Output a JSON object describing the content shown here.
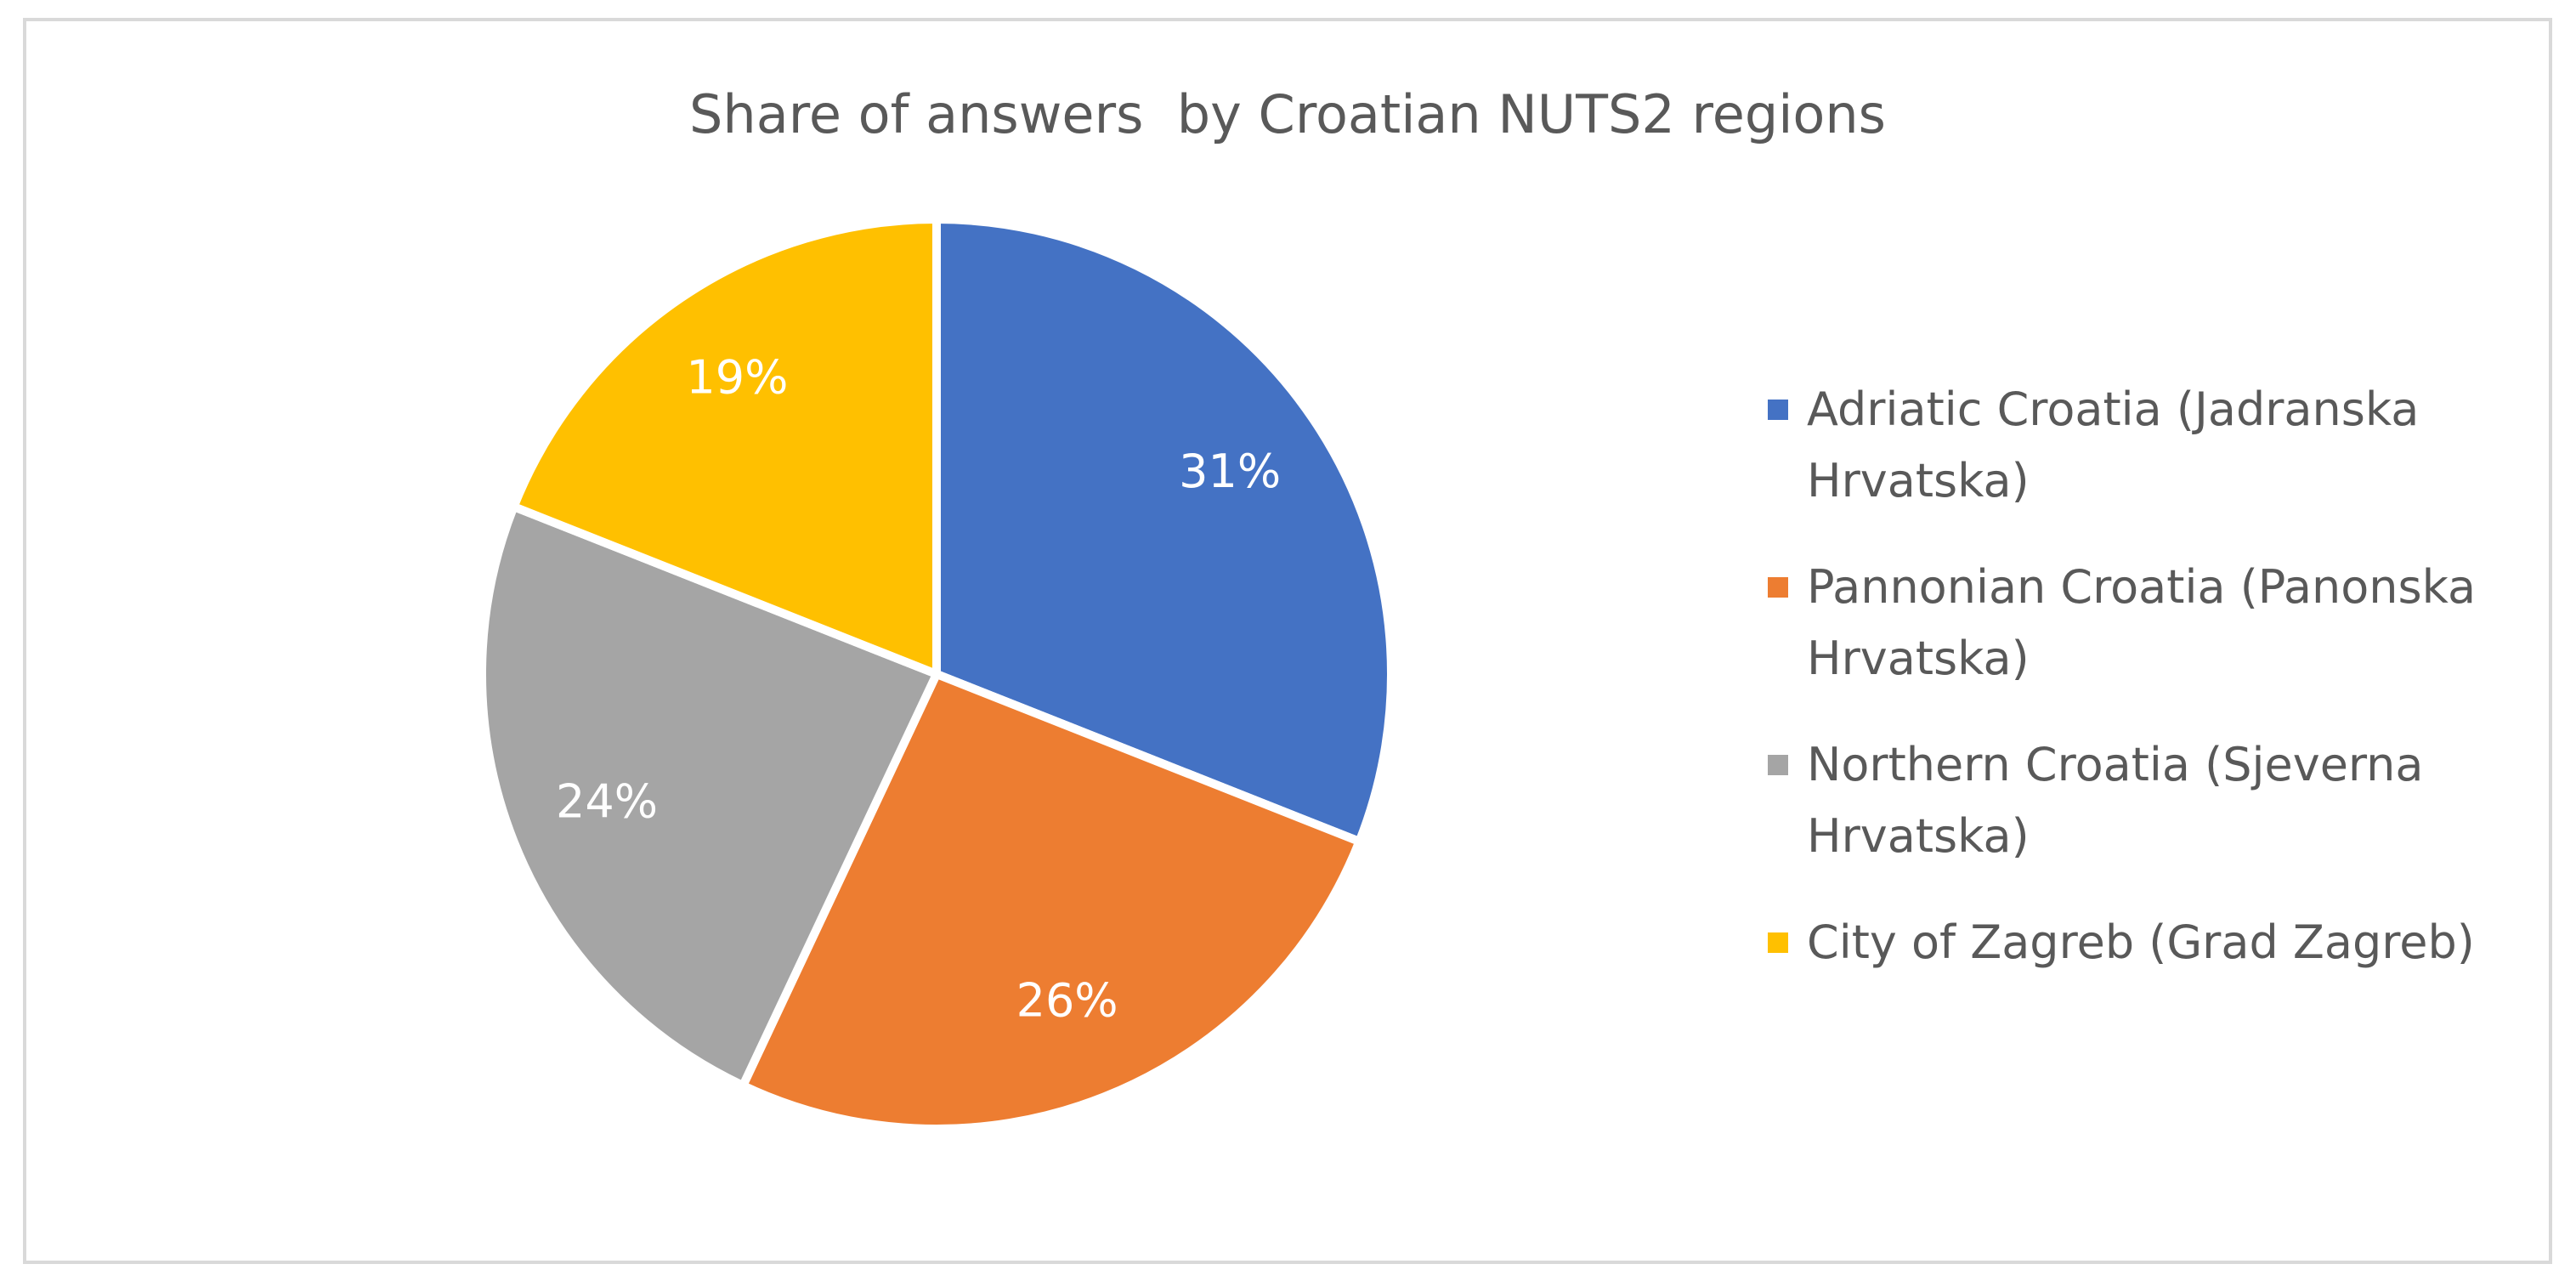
{
  "chart_data": {
    "type": "pie",
    "title": "Share of answers  by Croatian NUTS2 regions",
    "categories": [
      "Adriatic Croatia (Jadranska Hrvatska)",
      "Pannonian Croatia (Panonska Hrvatska)",
      "Northern Croatia (Sjeverna Hrvatska)",
      "City of Zagreb (Grad Zagreb)"
    ],
    "values": [
      31,
      26,
      24,
      19
    ],
    "value_labels": [
      "31%",
      "26%",
      "24%",
      "19%"
    ],
    "colors": [
      "#4472c4",
      "#ed7d31",
      "#a5a5a5",
      "#ffc000"
    ],
    "legend": "right"
  }
}
